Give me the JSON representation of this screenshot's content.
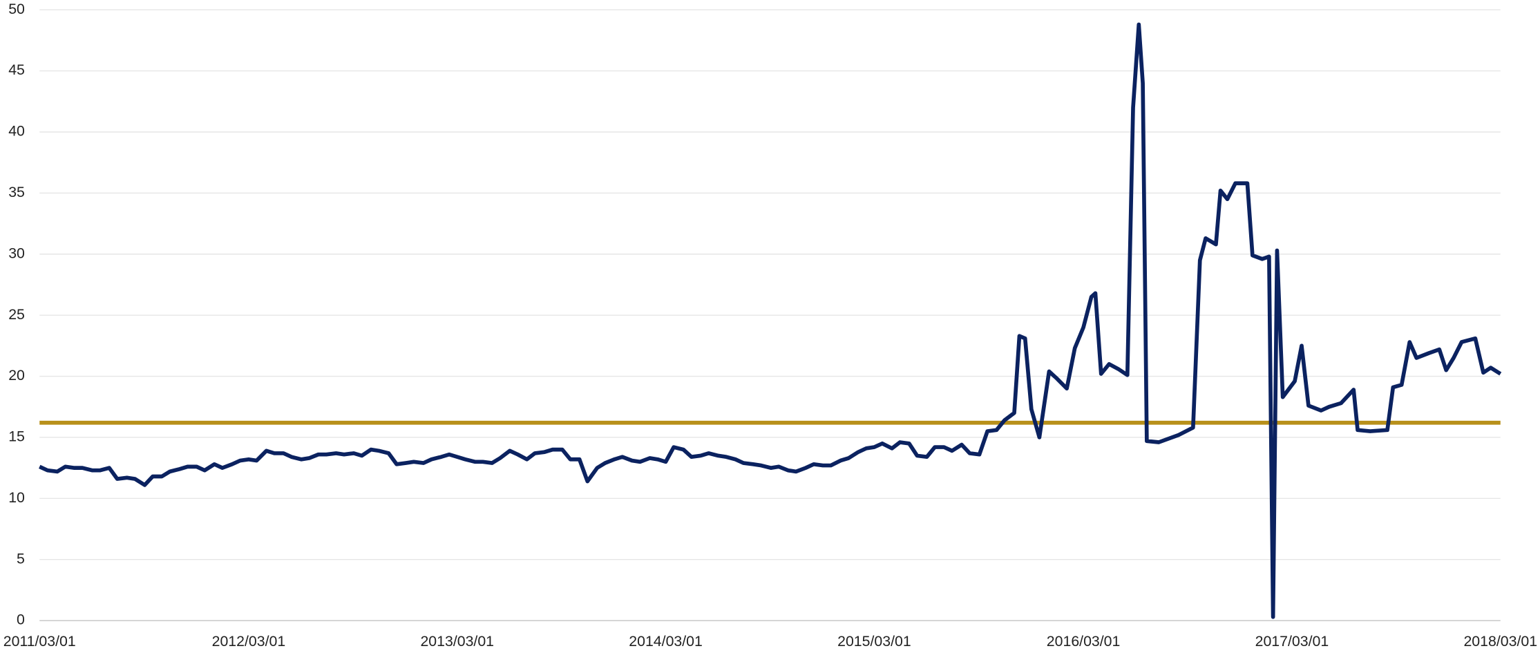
{
  "chart_data": {
    "type": "line",
    "x": [
      "2011/03/01",
      "2011/03/15",
      "2011/04/01",
      "2011/04/15",
      "2011/05/01",
      "2011/05/15",
      "2011/06/01",
      "2011/06/15",
      "2011/07/01",
      "2011/07/15",
      "2011/08/01",
      "2011/08/15",
      "2011/09/01",
      "2011/09/15",
      "2011/10/01",
      "2011/10/15",
      "2011/11/01",
      "2011/11/15",
      "2011/12/01",
      "2011/12/15",
      "2012/01/01",
      "2012/01/15",
      "2012/02/01",
      "2012/02/15",
      "2012/03/01",
      "2012/03/15",
      "2012/04/01",
      "2012/04/15",
      "2012/05/01",
      "2012/05/15",
      "2012/06/01",
      "2012/06/15",
      "2012/07/01",
      "2012/07/15",
      "2012/08/01",
      "2012/08/15",
      "2012/09/01",
      "2012/09/15",
      "2012/10/01",
      "2012/10/15",
      "2012/11/01",
      "2012/11/15",
      "2012/12/01",
      "2012/12/15",
      "2013/01/01",
      "2013/01/15",
      "2013/02/01",
      "2013/02/15",
      "2013/03/01",
      "2013/03/15",
      "2013/04/01",
      "2013/04/15",
      "2013/05/01",
      "2013/05/15",
      "2013/06/01",
      "2013/06/15",
      "2013/07/01",
      "2013/07/15",
      "2013/08/01",
      "2013/08/15",
      "2013/09/01",
      "2013/09/15",
      "2013/10/01",
      "2013/10/15",
      "2013/11/01",
      "2013/11/15",
      "2013/12/01",
      "2013/12/15",
      "2014/01/01",
      "2014/01/15",
      "2014/02/01",
      "2014/02/15",
      "2014/03/01",
      "2014/03/15",
      "2014/04/01",
      "2014/04/15",
      "2014/05/01",
      "2014/05/15",
      "2014/06/01",
      "2014/06/15",
      "2014/07/01",
      "2014/07/15",
      "2014/08/01",
      "2014/08/15",
      "2014/09/01",
      "2014/09/15",
      "2014/10/01",
      "2014/10/15",
      "2014/11/01",
      "2014/11/15",
      "2014/12/01",
      "2014/12/15",
      "2015/01/01",
      "2015/01/15",
      "2015/02/01",
      "2015/02/15",
      "2015/03/01",
      "2015/03/15",
      "2015/04/01",
      "2015/04/15",
      "2015/05/01",
      "2015/05/15",
      "2015/06/01",
      "2015/06/15",
      "2015/07/01",
      "2015/07/15",
      "2015/08/01",
      "2015/08/15",
      "2015/09/01",
      "2015/09/15",
      "2015/10/01",
      "2015/10/15",
      "2015/11/01",
      "2015/11/10",
      "2015/11/20",
      "2015/12/01",
      "2015/12/15",
      "2016/01/01",
      "2016/01/15",
      "2016/02/01",
      "2016/02/15",
      "2016/03/01",
      "2016/03/15",
      "2016/03/22",
      "2016/04/01",
      "2016/04/15",
      "2016/05/01",
      "2016/05/17",
      "2016/05/27",
      "2016/06/06",
      "2016/06/13",
      "2016/06/20",
      "2016/07/11",
      "2016/08/15",
      "2016/09/09",
      "2016/09/21",
      "2016/10/01",
      "2016/10/19",
      "2016/10/27",
      "2016/11/08",
      "2016/11/22",
      "2016/12/13",
      "2016/12/22",
      "2017/01/08",
      "2017/01/20",
      "2017/01/27",
      "2017/02/03",
      "2017/02/13",
      "2017/03/06",
      "2017/03/18",
      "2017/03/30",
      "2017/04/21",
      "2017/05/05",
      "2017/05/26",
      "2017/06/17",
      "2017/06/24",
      "2017/07/16",
      "2017/08/15",
      "2017/08/25",
      "2017/09/09",
      "2017/09/23",
      "2017/10/05",
      "2017/10/27",
      "2017/11/14",
      "2017/11/26",
      "2017/12/09",
      "2017/12/23",
      "2018/01/16",
      "2018/01/30",
      "2018/02/12",
      "2018/03/01"
    ],
    "series": [
      {
        "color": "#0b2260",
        "values": [
          12.6,
          12.3,
          12.2,
          12.6,
          12.5,
          12.5,
          12.3,
          12.3,
          12.5,
          11.6,
          11.7,
          11.6,
          11.1,
          11.8,
          11.8,
          12.2,
          12.4,
          12.6,
          12.6,
          12.3,
          12.8,
          12.5,
          12.8,
          13.1,
          13.2,
          13.1,
          13.9,
          13.7,
          13.7,
          13.4,
          13.2,
          13.3,
          13.6,
          13.6,
          13.7,
          13.6,
          13.7,
          13.5,
          14.0,
          13.9,
          13.7,
          12.8,
          12.9,
          13.0,
          12.9,
          13.2,
          13.4,
          13.6,
          13.4,
          13.2,
          13.0,
          13.0,
          12.9,
          13.3,
          13.9,
          13.6,
          13.2,
          13.7,
          13.8,
          14.0,
          14.0,
          13.2,
          13.2,
          11.4,
          12.5,
          12.9,
          13.2,
          13.4,
          13.1,
          13.0,
          13.3,
          13.2,
          13.0,
          14.2,
          14.0,
          13.4,
          13.5,
          13.7,
          13.5,
          13.4,
          13.2,
          12.9,
          12.8,
          12.7,
          12.5,
          12.6,
          12.3,
          12.2,
          12.5,
          12.8,
          12.7,
          12.7,
          13.1,
          13.3,
          13.8,
          14.1,
          14.2,
          14.5,
          14.1,
          14.6,
          14.5,
          13.5,
          13.4,
          14.2,
          14.2,
          13.9,
          14.4,
          13.7,
          13.6,
          15.5,
          15.6,
          16.4,
          17.0,
          23.3,
          23.1,
          17.3,
          15.0,
          20.4,
          19.8,
          19.0,
          22.3,
          24.0,
          26.5,
          26.8,
          20.2,
          21.0,
          20.6,
          20.1,
          42.0,
          48.8,
          44.0,
          14.7,
          14.6,
          15.2,
          15.8,
          29.5,
          31.3,
          30.8,
          35.2,
          34.5,
          35.8,
          35.8,
          29.9,
          29.6,
          29.8,
          0.3,
          30.3,
          18.3,
          19.6,
          22.5,
          17.6,
          17.2,
          17.5,
          17.8,
          18.9,
          15.6,
          15.5,
          15.6,
          19.1,
          19.3,
          22.8,
          21.5,
          21.9,
          22.2,
          20.5,
          21.5,
          22.8,
          23.1,
          20.3,
          20.7,
          20.2
        ]
      }
    ],
    "reference_line": {
      "value": 16.2,
      "color": "#b8901a"
    },
    "xlim": [
      "2011/03/01",
      "2018/03/01"
    ],
    "xticks": [
      "2011/03/01",
      "2012/03/01",
      "2013/03/01",
      "2014/03/01",
      "2015/03/01",
      "2016/03/01",
      "2017/03/01",
      "2018/03/01"
    ],
    "ylim": [
      0,
      50
    ],
    "yticks": [
      0,
      5,
      10,
      15,
      20,
      25,
      30,
      35,
      40,
      45,
      50
    ],
    "grid": true
  }
}
